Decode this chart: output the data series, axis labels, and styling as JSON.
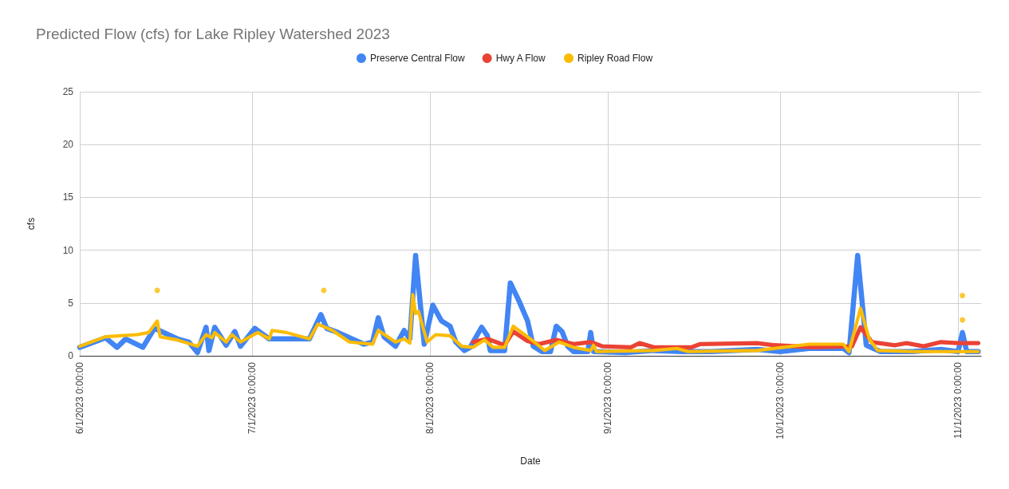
{
  "chart_data": {
    "type": "line",
    "title": "Predicted Flow (cfs) for Lake Ripley Watershed 2023",
    "xlabel": "Date",
    "ylabel": "cfs",
    "xlim": [
      "2023-06-01",
      "2023-11-05"
    ],
    "xticks": [
      {
        "value": "2023-06-01",
        "label": "6/1/2023 0:00:00"
      },
      {
        "value": "2023-07-01",
        "label": "7/1/2023 0:00:00"
      },
      {
        "value": "2023-08-01",
        "label": "8/1/2023 0:00:00"
      },
      {
        "value": "2023-09-01",
        "label": "9/1/2023 0:00:00"
      },
      {
        "value": "2023-10-01",
        "label": "10/1/2023 0:00:00"
      },
      {
        "value": "2023-11-01",
        "label": "11/1/2023 0:00:00"
      }
    ],
    "ylim": [
      0,
      25
    ],
    "yticks": [
      0,
      5,
      10,
      15,
      20,
      25
    ],
    "grid": true,
    "legend": "top",
    "marker": "none",
    "line_style": "solid",
    "series": [
      {
        "name": "Preserve Central Flow",
        "color": "#4285f4",
        "x": [
          "2023-06-01",
          "2023-06-05T12:00",
          "2023-06-07T12:00",
          "2023-06-09",
          "2023-06-12",
          "2023-06-14",
          "2023-06-18",
          "2023-06-20",
          "2023-06-21T12:00",
          "2023-06-23",
          "2023-06-23T12:00",
          "2023-06-24T12:00",
          "2023-06-26T12:00",
          "2023-06-28",
          "2023-06-29",
          "2023-07-01T12:00",
          "2023-07-04",
          "2023-07-11",
          "2023-07-13",
          "2023-07-14",
          "2023-07-16",
          "2023-07-20T12:00",
          "2023-07-22",
          "2023-07-23",
          "2023-07-24",
          "2023-07-26",
          "2023-07-27T12:00",
          "2023-07-28T12:00",
          "2023-07-29T12:00",
          "2023-07-31",
          "2023-08-01T12:00",
          "2023-08-03",
          "2023-08-04T12:00",
          "2023-08-05T12:00",
          "2023-08-07",
          "2023-08-08",
          "2023-08-10",
          "2023-08-11",
          "2023-08-11T12:00",
          "2023-08-14",
          "2023-08-15",
          "2023-08-16T12:00",
          "2023-08-18",
          "2023-08-19",
          "2023-08-20T12:00",
          "2023-08-22",
          "2023-08-23",
          "2023-08-24",
          "2023-08-25",
          "2023-08-26",
          "2023-08-28T12:00",
          "2023-08-29",
          "2023-08-29T12:00",
          "2023-09-04",
          "2023-09-09",
          "2023-09-14",
          "2023-09-19",
          "2023-09-27",
          "2023-10-01",
          "2023-10-06",
          "2023-10-12",
          "2023-10-13",
          "2023-10-14T12:00",
          "2023-10-16",
          "2023-10-18T12:00",
          "2023-10-24",
          "2023-10-29",
          "2023-11-01",
          "2023-11-01T18:00",
          "2023-11-02T12:00",
          "2023-11-04T12:00"
        ],
        "values": [
          0.8,
          1.7,
          0.8,
          1.6,
          0.8,
          2.6,
          1.6,
          1.3,
          0.3,
          2.7,
          0.5,
          2.7,
          1.0,
          2.3,
          0.9,
          2.6,
          1.6,
          1.6,
          3.9,
          2.6,
          2.2,
          1.1,
          1.3,
          3.6,
          1.8,
          0.9,
          2.4,
          1.6,
          9.5,
          1.1,
          4.8,
          3.3,
          2.8,
          1.3,
          0.5,
          0.8,
          2.7,
          1.9,
          0.5,
          0.5,
          6.9,
          5.2,
          3.3,
          0.9,
          0.4,
          0.4,
          2.8,
          2.3,
          0.9,
          0.4,
          0.4,
          2.2,
          0.4,
          0.3,
          0.5,
          0.4,
          0.4,
          0.6,
          0.4,
          0.7,
          0.7,
          0.3,
          9.5,
          1.0,
          0.4,
          0.4,
          0.6,
          0.4,
          2.2,
          0.4,
          0.4
        ]
      },
      {
        "name": "Hwy A Flow",
        "color": "#ea4335",
        "x": [
          "2023-08-08T12:00",
          "2023-08-11",
          "2023-08-14",
          "2023-08-15T12:00",
          "2023-08-18",
          "2023-08-20",
          "2023-08-23",
          "2023-08-26",
          "2023-08-29",
          "2023-08-31",
          "2023-09-05",
          "2023-09-06T12:00",
          "2023-09-09",
          "2023-09-15T12:00",
          "2023-09-17",
          "2023-09-27",
          "2023-09-30",
          "2023-10-07",
          "2023-10-13T12:00",
          "2023-10-15",
          "2023-10-17",
          "2023-10-21",
          "2023-10-23",
          "2023-10-26",
          "2023-10-29",
          "2023-11-01",
          "2023-11-04T12:00"
        ],
        "values": [
          1.3,
          1.6,
          1.0,
          2.3,
          1.4,
          1.1,
          1.5,
          1.1,
          1.3,
          0.9,
          0.8,
          1.2,
          0.8,
          0.8,
          1.1,
          1.2,
          1.0,
          0.8,
          0.9,
          2.7,
          1.3,
          1.0,
          1.2,
          0.9,
          1.3,
          1.2,
          1.2
        ]
      },
      {
        "name": "Ripley Road Flow",
        "color": "#fbbc04",
        "x": [
          "2023-06-01",
          "2023-06-05T12:00",
          "2023-06-11",
          "2023-06-13",
          "2023-06-14T12:00",
          "2023-06-15",
          "2023-06-18",
          "2023-06-21T12:00",
          "2023-06-23",
          "2023-06-24",
          "2023-06-24T12:00",
          "2023-06-26T12:00",
          "2023-06-27T12:00",
          "2023-06-29",
          "2023-07-02",
          "2023-07-04",
          "2023-07-04T12:00",
          "2023-07-07",
          "2023-07-11",
          "2023-07-12T12:00",
          "2023-07-15",
          "2023-07-18",
          "2023-07-22",
          "2023-07-23",
          "2023-07-26",
          "2023-07-27T12:00",
          "2023-07-28T12:00",
          "2023-07-29",
          "2023-07-29T12:00",
          "2023-07-30",
          "2023-07-31T12:00",
          "2023-08-02",
          "2023-08-04T12:00",
          "2023-08-06T12:00",
          "2023-08-08T12:00",
          "2023-08-10T12:00",
          "2023-08-12",
          "2023-08-14",
          "2023-08-15T12:00",
          "2023-08-18T12:00",
          "2023-08-21",
          "2023-08-23T12:00",
          "2023-08-26",
          "2023-08-29",
          "2023-08-29T12:00",
          "2023-08-30",
          "2023-09-09",
          "2023-09-13",
          "2023-09-15",
          "2023-09-27",
          "2023-10-06",
          "2023-10-12",
          "2023-10-13",
          "2023-10-15",
          "2023-10-16T12:00",
          "2023-10-18",
          "2023-10-24",
          "2023-11-04T12:00"
        ],
        "values": [
          0.9,
          1.8,
          2.0,
          2.2,
          3.3,
          1.8,
          1.5,
          0.9,
          2.0,
          1.7,
          2.2,
          1.3,
          2.0,
          1.3,
          2.2,
          1.6,
          2.4,
          2.2,
          1.6,
          3.0,
          2.4,
          1.3,
          1.1,
          2.4,
          1.3,
          1.6,
          1.2,
          5.8,
          4.0,
          4.2,
          1.3,
          2.0,
          1.9,
          0.9,
          0.8,
          1.5,
          0.8,
          0.8,
          2.8,
          1.6,
          0.5,
          1.3,
          0.8,
          0.5,
          1.0,
          0.4,
          0.5,
          0.7,
          0.4,
          0.5,
          1.1,
          1.1,
          0.4,
          4.5,
          1.6,
          0.5,
          0.4,
          0.4
        ]
      },
      {
        "type": "scatter",
        "marker": "circle",
        "color": "#fbbc04",
        "x": [
          "2023-06-14T12:00",
          "2023-07-13T12:00",
          "2023-11-01T18:00",
          "2023-11-01T18:00"
        ],
        "values": [
          6.2,
          6.2,
          5.7,
          3.4
        ]
      }
    ]
  }
}
